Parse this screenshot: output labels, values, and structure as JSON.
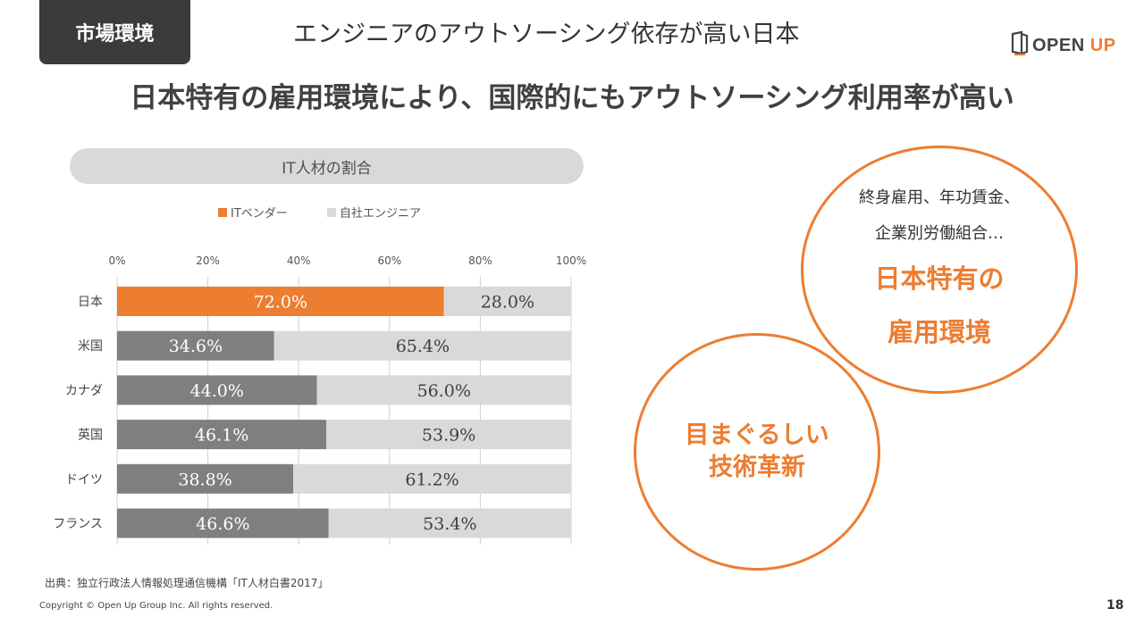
{
  "section_tag": "市場環境",
  "headline": "エンジニアのアウトソーシング依存が高い日本",
  "logo": {
    "text_main": "OPEN ",
    "text_accent": "UP",
    "icon": "open-up-logo-icon"
  },
  "subtitle": "日本特有の雇用環境により、国際的にもアウトソーシング利用率が高い",
  "colors": {
    "accent": "#ed7d31",
    "vendor_bar": "#ed7d31",
    "vendor_bar_other": "#7f7f7f",
    "inhouse_bar": "#d9d9d9"
  },
  "chart_data": {
    "type": "bar",
    "orientation": "horizontal",
    "stacked": true,
    "title": "IT人材の割合",
    "categories": [
      "日本",
      "米国",
      "カナダ",
      "英国",
      "ドイツ",
      "フランス"
    ],
    "series": [
      {
        "name": "ITベンダー",
        "values": [
          72.0,
          34.6,
          44.0,
          46.1,
          38.8,
          46.6
        ],
        "labels": [
          "72.0%",
          "34.6%",
          "44.0%",
          "46.1%",
          "38.8%",
          "46.6%"
        ]
      },
      {
        "name": "自社エンジニア",
        "values": [
          28.0,
          65.4,
          56.0,
          53.9,
          61.2,
          53.4
        ],
        "labels": [
          "28.0%",
          "65.4%",
          "56.0%",
          "53.9%",
          "61.2%",
          "53.4%"
        ]
      }
    ],
    "xticks": [
      "0%",
      "20%",
      "40%",
      "60%",
      "80%",
      "100%"
    ],
    "xlim": [
      0,
      100
    ],
    "xaxis_position": "top",
    "grid": true,
    "legend": "top"
  },
  "circle_a": {
    "line1": "終身雇用、年功賃金、",
    "line2": "企業別労働組合…",
    "big1": "日本特有の",
    "big2": "雇用環境"
  },
  "circle_b": {
    "line1": "目まぐるしい",
    "line2": "技術革新"
  },
  "source": "出典：独立行政法人情報処理通信機構「IT人材白書2017」",
  "copyright": "Copyright © Open Up Group Inc. All rights reserved.",
  "page_number": "18"
}
